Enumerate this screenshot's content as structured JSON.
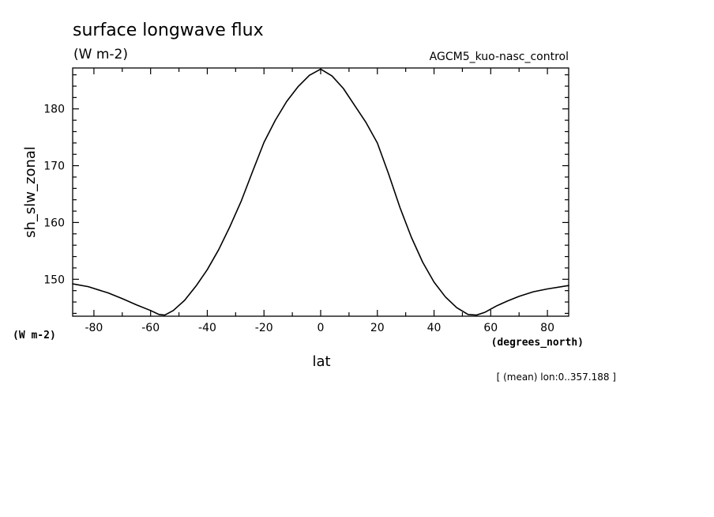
{
  "chart_data": {
    "type": "line",
    "title": "surface longwave flux",
    "units": "(W m-2)",
    "model": "AGCM5_kuo-nasc_control",
    "xlabel": "lat",
    "x_units": "(degrees_north)",
    "ylabel": "sh_slw_zonal",
    "y_units": "(W m-2)",
    "note": "[ (mean) lon:0..357.188 ]",
    "xlim": [
      -87.5,
      87.5
    ],
    "ylim": [
      143.5,
      187.2
    ],
    "x_ticks": [
      -80,
      -60,
      -40,
      -20,
      0,
      20,
      40,
      60,
      80
    ],
    "x_tick_labels": [
      "-80",
      "-60",
      "-40",
      "-20",
      "0",
      "20",
      "40",
      "60",
      "80"
    ],
    "y_ticks": [
      150,
      160,
      170,
      180
    ],
    "y_tick_labels": [
      "150",
      "160",
      "170",
      "180"
    ],
    "grid": false,
    "series": [
      {
        "name": "",
        "x": [
          -87.5,
          -82,
          -75,
          -70,
          -65,
          -60,
          -57,
          -55,
          -52,
          -48,
          -44,
          -40,
          -36,
          -32,
          -28,
          -24,
          -20,
          -16,
          -12,
          -8,
          -4,
          0,
          4,
          8,
          12,
          16,
          20,
          24,
          28,
          32,
          36,
          40,
          44,
          48,
          52,
          55,
          58,
          62,
          66,
          70,
          75,
          80,
          87.5
        ],
        "y": [
          149.2,
          148.7,
          147.6,
          146.6,
          145.5,
          144.5,
          143.8,
          143.7,
          144.5,
          146.3,
          148.8,
          151.7,
          155.2,
          159.3,
          163.8,
          169.0,
          174.1,
          178.0,
          181.3,
          183.9,
          185.9,
          187.0,
          185.8,
          183.6,
          180.6,
          177.6,
          174.0,
          168.5,
          162.6,
          157.4,
          153.0,
          149.5,
          146.9,
          145.0,
          143.8,
          143.7,
          144.2,
          145.3,
          146.2,
          147.0,
          147.8,
          148.3,
          148.9
        ],
        "color": "#000000"
      }
    ]
  }
}
